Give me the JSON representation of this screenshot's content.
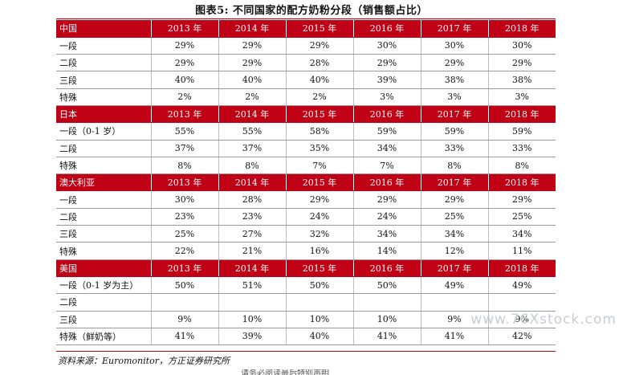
{
  "title": "图表5:   不同国家的配方奶粉分段（销售额占比）",
  "sections": [
    {
      "country": "中国",
      "years": [
        "2013 年",
        "2014 年",
        "2015 年",
        "2016 年",
        "2017 年",
        "2018 年"
      ],
      "rows": [
        {
          "label": "一段",
          "values": [
            "29%",
            "29%",
            "29%",
            "30%",
            "30%",
            "30%"
          ]
        },
        {
          "label": "二段",
          "values": [
            "29%",
            "29%",
            "28%",
            "29%",
            "29%",
            "29%"
          ]
        },
        {
          "label": "三段",
          "values": [
            "40%",
            "40%",
            "40%",
            "39%",
            "38%",
            "38%"
          ]
        },
        {
          "label": "特殊",
          "values": [
            "2%",
            "2%",
            "2%",
            "3%",
            "3%",
            "3%"
          ]
        }
      ]
    },
    {
      "country": "日本",
      "years": [
        "2013 年",
        "2014 年",
        "2015 年",
        "2016 年",
        "2017 年",
        "2018 年"
      ],
      "rows": [
        {
          "label": "一段（0-1 岁）",
          "values": [
            "55%",
            "55%",
            "58%",
            "59%",
            "59%",
            "59%"
          ]
        },
        {
          "label": "二段",
          "values": [
            "37%",
            "37%",
            "35%",
            "34%",
            "33%",
            "33%"
          ]
        },
        {
          "label": "特殊",
          "values": [
            "8%",
            "8%",
            "7%",
            "7%",
            "8%",
            "8%"
          ]
        }
      ]
    },
    {
      "country": "澳大利亚",
      "years": [
        "2013 年",
        "2014 年",
        "2015 年",
        "2016 年",
        "2017 年",
        "2018 年"
      ],
      "rows": [
        {
          "label": "一段",
          "values": [
            "30%",
            "28%",
            "29%",
            "29%",
            "29%",
            "29%"
          ]
        },
        {
          "label": "二段",
          "values": [
            "23%",
            "23%",
            "24%",
            "24%",
            "25%",
            "25%"
          ]
        },
        {
          "label": "三段",
          "values": [
            "25%",
            "27%",
            "32%",
            "34%",
            "34%",
            "34%"
          ]
        },
        {
          "label": "特殊",
          "values": [
            "22%",
            "21%",
            "16%",
            "14%",
            "12%",
            "11%"
          ]
        }
      ]
    },
    {
      "country": "美国",
      "years": [
        "2013 年",
        "2014 年",
        "2015 年",
        "2016 年",
        "2017 年",
        "2018 年"
      ],
      "rows": [
        {
          "label": "一段（0-1 岁为主）",
          "values": [
            "50%",
            "51%",
            "50%",
            "50%",
            "49%",
            "49%"
          ]
        },
        {
          "label": "二段",
          "values": [
            "",
            "",
            "",
            "",
            "",
            ""
          ]
        },
        {
          "label": "三段",
          "values": [
            "9%",
            "10%",
            "10%",
            "10%",
            "9%",
            "9%"
          ]
        },
        {
          "label": "特殊（鲜奶等）",
          "values": [
            "41%",
            "39%",
            "40%",
            "41%",
            "41%",
            "42%"
          ]
        }
      ]
    }
  ],
  "source": "资料来源：Euromonitor，方正证券研究所",
  "watermark": "www.76Xstock.com",
  "cut_text": "请务必阅读最后特别声明"
}
